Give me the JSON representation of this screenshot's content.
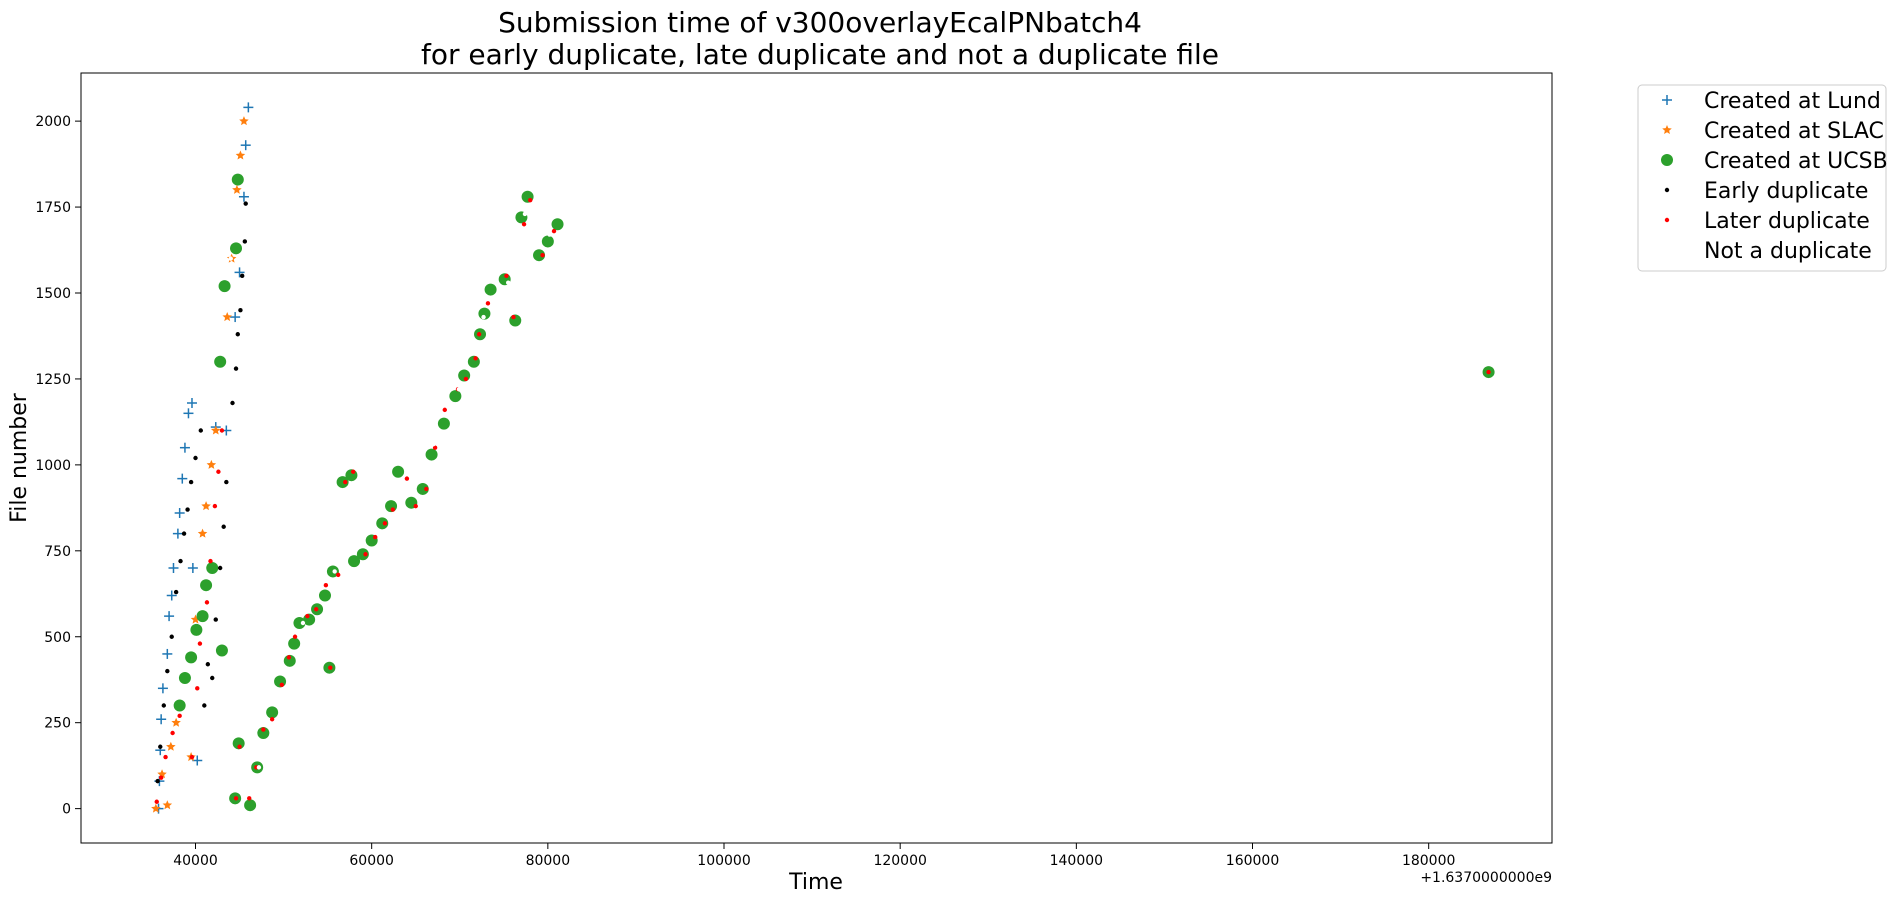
{
  "chart_data": {
    "type": "scatter",
    "title_line1": "Submission time of v300overlayEcalPNbatch4",
    "title_line2": "for early duplicate, late duplicate and not a duplicate file",
    "xlabel": "Time",
    "ylabel": "File number",
    "x_offset_label": "+1.6370000000e9",
    "xlim": [
      27000,
      194000
    ],
    "ylim": [
      -100,
      2140
    ],
    "xticks": [
      40000,
      60000,
      80000,
      100000,
      120000,
      140000,
      160000,
      180000
    ],
    "xtick_labels": [
      "40000",
      "60000",
      "80000",
      "100000",
      "120000",
      "140000",
      "160000",
      "180000"
    ],
    "yticks": [
      0,
      250,
      500,
      750,
      1000,
      1250,
      1500,
      1750,
      2000
    ],
    "ytick_labels": [
      "0",
      "250",
      "500",
      "750",
      "1000",
      "1250",
      "1500",
      "1750",
      "2000"
    ],
    "legend_position": "outside-top-right",
    "series": [
      {
        "name": "Created at Lund",
        "marker": "plus",
        "color": "#1f77b4",
        "points": [
          [
            35800,
            0
          ],
          [
            35900,
            80
          ],
          [
            36000,
            170
          ],
          [
            36100,
            260
          ],
          [
            36300,
            350
          ],
          [
            36800,
            450
          ],
          [
            37000,
            560
          ],
          [
            37300,
            620
          ],
          [
            37500,
            700
          ],
          [
            38000,
            800
          ],
          [
            38200,
            860
          ],
          [
            38500,
            960
          ],
          [
            38800,
            1050
          ],
          [
            39200,
            1150
          ],
          [
            39600,
            1180
          ],
          [
            39700,
            700
          ],
          [
            40200,
            140
          ],
          [
            42300,
            1110
          ],
          [
            43500,
            1100
          ],
          [
            44500,
            1430
          ],
          [
            45000,
            1560
          ],
          [
            45500,
            1780
          ],
          [
            45700,
            1930
          ],
          [
            46000,
            2040
          ]
        ]
      },
      {
        "name": "Created at SLAC",
        "marker": "star",
        "color": "#ff7f0e",
        "points": [
          [
            35500,
            0
          ],
          [
            36200,
            100
          ],
          [
            37200,
            180
          ],
          [
            37800,
            250
          ],
          [
            39500,
            150
          ],
          [
            40000,
            550
          ],
          [
            40800,
            800
          ],
          [
            41200,
            880
          ],
          [
            41800,
            1000
          ],
          [
            42300,
            1100
          ],
          [
            42900,
            1300
          ],
          [
            43600,
            1430
          ],
          [
            44100,
            1600
          ],
          [
            44700,
            1800
          ],
          [
            45100,
            1900
          ],
          [
            45500,
            2000
          ],
          [
            36800,
            10
          ]
        ]
      },
      {
        "name": "Created at UCSB",
        "marker": "circle",
        "color": "#2ca02c",
        "points": [
          [
            38200,
            300
          ],
          [
            38800,
            380
          ],
          [
            39500,
            440
          ],
          [
            40100,
            520
          ],
          [
            40800,
            560
          ],
          [
            41200,
            650
          ],
          [
            41900,
            700
          ],
          [
            42800,
            1300
          ],
          [
            43300,
            1520
          ],
          [
            44600,
            1630
          ],
          [
            44800,
            1830
          ],
          [
            43000,
            460
          ],
          [
            44500,
            30
          ],
          [
            44900,
            190
          ],
          [
            46200,
            10
          ],
          [
            47000,
            120
          ],
          [
            47700,
            220
          ],
          [
            48700,
            280
          ],
          [
            49600,
            370
          ],
          [
            50700,
            430
          ],
          [
            51200,
            480
          ],
          [
            51800,
            540
          ],
          [
            52900,
            550
          ],
          [
            53800,
            580
          ],
          [
            54700,
            620
          ],
          [
            55200,
            410
          ],
          [
            55600,
            690
          ],
          [
            56700,
            950
          ],
          [
            57700,
            970
          ],
          [
            58000,
            720
          ],
          [
            59000,
            740
          ],
          [
            60000,
            780
          ],
          [
            61200,
            830
          ],
          [
            62200,
            880
          ],
          [
            63000,
            980
          ],
          [
            64500,
            890
          ],
          [
            65800,
            930
          ],
          [
            66800,
            1030
          ],
          [
            68200,
            1120
          ],
          [
            69500,
            1200
          ],
          [
            70500,
            1260
          ],
          [
            71600,
            1300
          ],
          [
            72300,
            1380
          ],
          [
            72800,
            1440
          ],
          [
            73500,
            1510
          ],
          [
            75100,
            1540
          ],
          [
            76300,
            1420
          ],
          [
            77000,
            1720
          ],
          [
            77700,
            1780
          ],
          [
            79000,
            1610
          ],
          [
            80000,
            1650
          ],
          [
            81100,
            1700
          ],
          [
            186800,
            1270
          ]
        ]
      },
      {
        "name": "Early duplicate",
        "marker": "dot",
        "color": "#000000",
        "points": [
          [
            35700,
            80
          ],
          [
            36000,
            180
          ],
          [
            36400,
            300
          ],
          [
            36800,
            400
          ],
          [
            37300,
            500
          ],
          [
            37800,
            630
          ],
          [
            38300,
            720
          ],
          [
            38700,
            800
          ],
          [
            39100,
            870
          ],
          [
            39500,
            950
          ],
          [
            40000,
            1020
          ],
          [
            40600,
            1100
          ],
          [
            41000,
            300
          ],
          [
            41400,
            420
          ],
          [
            41900,
            380
          ],
          [
            42300,
            550
          ],
          [
            42800,
            700
          ],
          [
            43200,
            820
          ],
          [
            43500,
            950
          ],
          [
            44200,
            1180
          ],
          [
            44600,
            1280
          ],
          [
            44800,
            1380
          ],
          [
            45100,
            1450
          ],
          [
            45300,
            1550
          ],
          [
            45600,
            1650
          ],
          [
            45700,
            1760
          ]
        ]
      },
      {
        "name": "Later duplicate",
        "marker": "dot",
        "color": "#ff0000",
        "points": [
          [
            35600,
            20
          ],
          [
            36100,
            90
          ],
          [
            36600,
            150
          ],
          [
            37400,
            220
          ],
          [
            38200,
            270
          ],
          [
            39600,
            150
          ],
          [
            40200,
            350
          ],
          [
            40500,
            480
          ],
          [
            41300,
            600
          ],
          [
            41700,
            720
          ],
          [
            42200,
            880
          ],
          [
            42600,
            980
          ],
          [
            43000,
            1100
          ],
          [
            44600,
            30
          ],
          [
            45000,
            180
          ],
          [
            46100,
            30
          ],
          [
            46900,
            120
          ],
          [
            47700,
            230
          ],
          [
            48700,
            260
          ],
          [
            49800,
            360
          ],
          [
            50600,
            440
          ],
          [
            51300,
            500
          ],
          [
            52700,
            560
          ],
          [
            53700,
            580
          ],
          [
            54800,
            650
          ],
          [
            55300,
            410
          ],
          [
            56200,
            680
          ],
          [
            57000,
            950
          ],
          [
            57900,
            980
          ],
          [
            59300,
            740
          ],
          [
            60400,
            790
          ],
          [
            61500,
            830
          ],
          [
            62400,
            870
          ],
          [
            64000,
            960
          ],
          [
            65000,
            880
          ],
          [
            66200,
            930
          ],
          [
            67200,
            1050
          ],
          [
            68300,
            1160
          ],
          [
            69800,
            1220
          ],
          [
            70700,
            1250
          ],
          [
            71800,
            1310
          ],
          [
            72200,
            1380
          ],
          [
            73200,
            1470
          ],
          [
            75300,
            1550
          ],
          [
            76100,
            1430
          ],
          [
            77300,
            1700
          ],
          [
            78000,
            1770
          ],
          [
            79400,
            1610
          ],
          [
            80700,
            1680
          ],
          [
            186800,
            1270
          ]
        ]
      },
      {
        "name": "Not a duplicate",
        "marker": "dot",
        "color": "#ffffff",
        "points": [
          [
            47200,
            120
          ],
          [
            50500,
            380
          ],
          [
            52200,
            540
          ],
          [
            55800,
            690
          ],
          [
            67000,
            1060
          ],
          [
            69900,
            1220
          ],
          [
            72700,
            1430
          ],
          [
            75500,
            1530
          ],
          [
            77400,
            1730
          ],
          [
            80200,
            1670
          ],
          [
            44000,
            1600
          ],
          [
            42000,
            470
          ]
        ]
      }
    ]
  }
}
